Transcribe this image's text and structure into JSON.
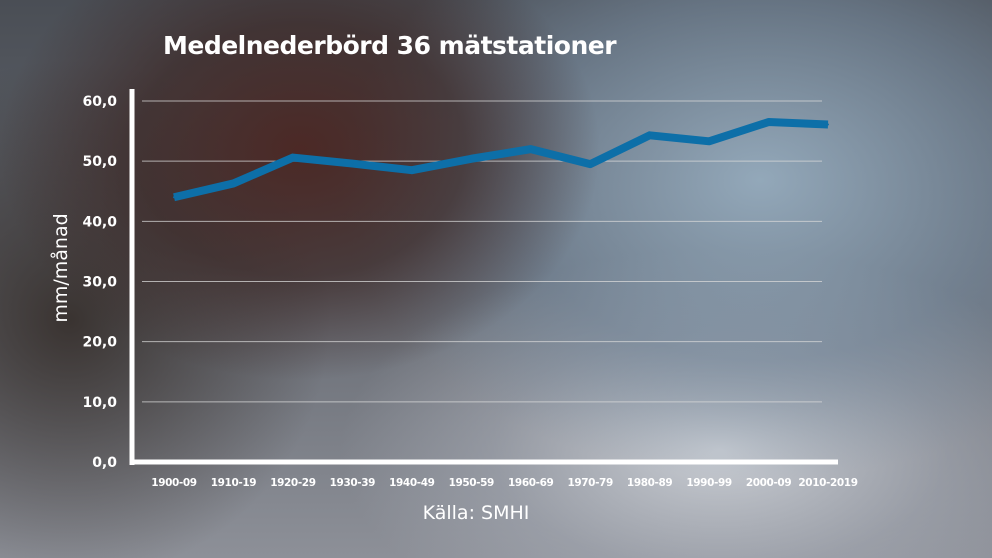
{
  "chart_data": {
    "type": "line",
    "title": "Medelnederbörd 36 mätstationer",
    "ylabel": "mm/månad",
    "xlabel": "",
    "source": "Källa: SMHI",
    "categories": [
      "1900-09",
      "1910-19",
      "1920-29",
      "1930-39",
      "1940-49",
      "1950-59",
      "1960-69",
      "1970-79",
      "1980-89",
      "1990-99",
      "2000-09",
      "2010-2019"
    ],
    "series": [
      {
        "values": [
          44.0,
          46.3,
          50.6,
          49.6,
          48.5,
          50.4,
          52.0,
          49.5,
          54.3,
          53.3,
          56.5,
          56.1
        ]
      }
    ],
    "ylim": [
      0,
      60
    ],
    "yticks": [
      "0,0",
      "10,0",
      "20,0",
      "30,0",
      "40,0",
      "50,0",
      "60,0"
    ],
    "grid": true,
    "colors": {
      "line": "#0d6fa8",
      "axis": "#ffffff",
      "grid": "#d9d9d9",
      "text": "#ffffff"
    }
  }
}
